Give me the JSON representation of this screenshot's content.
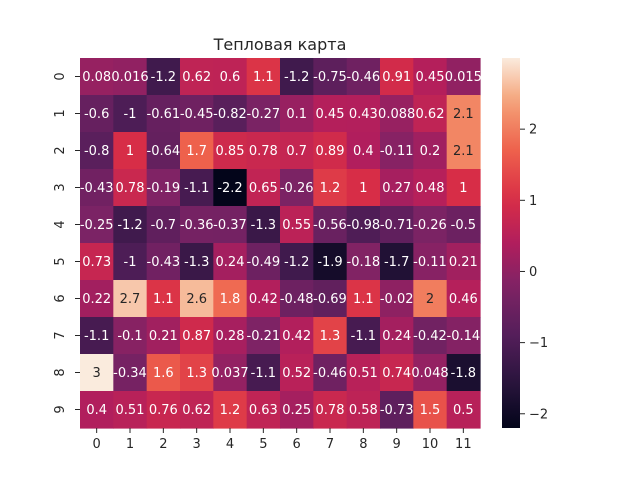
{
  "chart_data": {
    "type": "heatmap",
    "title": "Тепловая карта",
    "x_labels": [
      "0",
      "1",
      "2",
      "3",
      "4",
      "5",
      "6",
      "7",
      "8",
      "9",
      "10",
      "11"
    ],
    "y_labels": [
      "0",
      "1",
      "2",
      "3",
      "4",
      "5",
      "6",
      "7",
      "8",
      "9"
    ],
    "values": [
      [
        0.08,
        0.016,
        -1.2,
        0.62,
        0.6,
        1.1,
        -1.2,
        -0.75,
        -0.46,
        0.91,
        0.45,
        0.015
      ],
      [
        -0.6,
        -1,
        -0.61,
        -0.45,
        -0.82,
        -0.27,
        0.1,
        0.45,
        0.43,
        0.088,
        0.62,
        2.1
      ],
      [
        -0.8,
        1,
        -0.64,
        1.7,
        0.85,
        0.78,
        0.7,
        0.89,
        0.4,
        -0.11,
        0.2,
        2.1
      ],
      [
        -0.43,
        0.78,
        -0.19,
        -1.1,
        -2.2,
        0.65,
        -0.26,
        1.2,
        1,
        0.27,
        0.48,
        1
      ],
      [
        -0.25,
        -1.2,
        -0.7,
        -0.36,
        -0.37,
        -1.3,
        0.55,
        -0.56,
        -0.98,
        -0.71,
        -0.26,
        -0.5
      ],
      [
        0.73,
        -1,
        -0.43,
        -1.3,
        0.24,
        -0.49,
        -1.2,
        -1.9,
        -0.18,
        -1.7,
        -0.11,
        0.21
      ],
      [
        0.22,
        2.7,
        1.1,
        2.6,
        1.8,
        0.42,
        -0.48,
        -0.69,
        1.1,
        -0.02,
        2,
        0.46
      ],
      [
        -1.1,
        -0.1,
        0.21,
        0.87,
        0.28,
        -0.21,
        0.42,
        1.3,
        -1.1,
        0.24,
        -0.42,
        -0.14
      ],
      [
        3,
        -0.34,
        1.6,
        1.3,
        0.037,
        -1.1,
        0.52,
        -0.46,
        0.51,
        0.74,
        0.048,
        -1.8
      ],
      [
        0.4,
        0.51,
        0.76,
        0.62,
        1.2,
        0.63,
        0.25,
        0.78,
        0.58,
        -0.73,
        1.5,
        0.5
      ]
    ],
    "value_labels": [
      [
        "0.08",
        "0.016",
        "-1.2",
        "0.62",
        "0.6",
        "1.1",
        "-1.2",
        "-0.75",
        "-0.46",
        "0.91",
        "0.45",
        "0.015"
      ],
      [
        "-0.6",
        "-1",
        "-0.61",
        "-0.45",
        "-0.82",
        "-0.27",
        "0.1",
        "0.45",
        "0.43",
        "0.088",
        "0.62",
        "2.1"
      ],
      [
        "-0.8",
        "1",
        "-0.64",
        "1.7",
        "0.85",
        "0.78",
        "0.7",
        "0.89",
        "0.4",
        "-0.11",
        "0.2",
        "2.1"
      ],
      [
        "-0.43",
        "0.78",
        "-0.19",
        "-1.1",
        "-2.2",
        "0.65",
        "-0.26",
        "1.2",
        "1",
        "0.27",
        "0.48",
        "1"
      ],
      [
        "-0.25",
        "-1.2",
        "-0.7",
        "-0.36",
        "-0.37",
        "-1.3",
        "0.55",
        "-0.56",
        "-0.98",
        "-0.71",
        "-0.26",
        "-0.5"
      ],
      [
        "0.73",
        "-1",
        "-0.43",
        "-1.3",
        "0.24",
        "-0.49",
        "-1.2",
        "-1.9",
        "-0.18",
        "-1.7",
        "-0.11",
        "0.21"
      ],
      [
        "0.22",
        "2.7",
        "1.1",
        "2.6",
        "1.8",
        "0.42",
        "-0.48",
        "-0.69",
        "1.1",
        "-0.02",
        "2",
        "0.46"
      ],
      [
        "-1.1",
        "-0.1",
        "0.21",
        "0.87",
        "0.28",
        "-0.21",
        "0.42",
        "1.3",
        "-1.1",
        "0.24",
        "-0.42",
        "-0.14"
      ],
      [
        "3",
        "-0.34",
        "1.6",
        "1.3",
        "0.037",
        "-1.1",
        "0.52",
        "-0.46",
        "0.51",
        "0.74",
        "0.048",
        "-1.8"
      ],
      [
        "0.4",
        "0.51",
        "0.76",
        "0.62",
        "1.2",
        "0.63",
        "0.25",
        "0.78",
        "0.58",
        "-0.73",
        "1.5",
        "0.5"
      ]
    ],
    "color_range": [
      -2.2,
      3
    ],
    "colorbar_ticks": [
      -2,
      -1,
      0,
      1,
      2
    ],
    "colorbar_tick_labels": [
      "−2",
      "−1",
      "0",
      "1",
      "2"
    ],
    "colormap": "rocket",
    "grid": false,
    "colorbar_position": "right"
  }
}
